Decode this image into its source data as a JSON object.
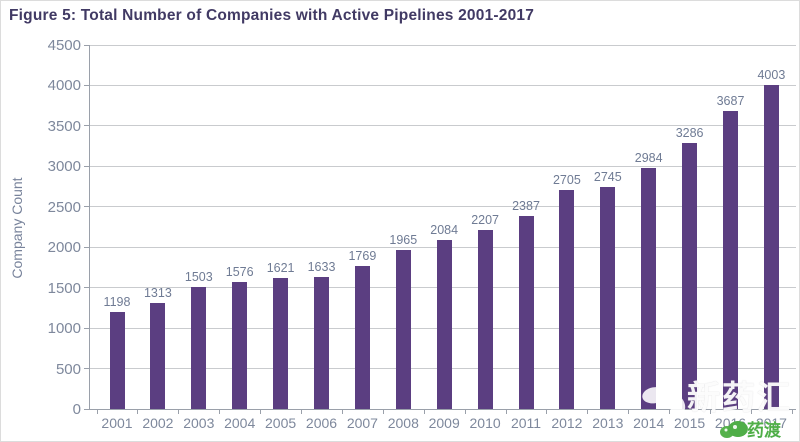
{
  "title": "Figure 5: Total Number of Companies with Active Pipelines 2001-2017",
  "chart_data": {
    "type": "bar",
    "categories": [
      "2001",
      "2002",
      "2003",
      "2004",
      "2005",
      "2006",
      "2007",
      "2008",
      "2009",
      "2010",
      "2011",
      "2012",
      "2013",
      "2014",
      "2015",
      "2016",
      "2017"
    ],
    "values": [
      1198,
      1313,
      1503,
      1576,
      1621,
      1633,
      1769,
      1965,
      2084,
      2207,
      2387,
      2705,
      2745,
      2984,
      3286,
      3687,
      4003
    ],
    "title": "Figure 5: Total Number of Companies with Active Pipelines 2001-2017",
    "xlabel": "",
    "ylabel": "Company Count",
    "ylim": [
      0,
      4500
    ],
    "yticks": [
      0,
      500,
      1000,
      1500,
      2000,
      2500,
      3000,
      3500,
      4000,
      4500
    ],
    "grid": true,
    "legend": "none",
    "bar_color": "#5b3e81",
    "tick_label_color": "#7e889c",
    "data_label_color": "#6f7b94",
    "gridline_color": "#c9cbce",
    "title_color": "#413a64"
  },
  "watermarks": {
    "brand_text": "新药汇",
    "brand_icon": "pinwheel-icon",
    "corner_text": "药渡",
    "corner_icon": "leaf-icon",
    "corner_color": "#4fae47"
  }
}
